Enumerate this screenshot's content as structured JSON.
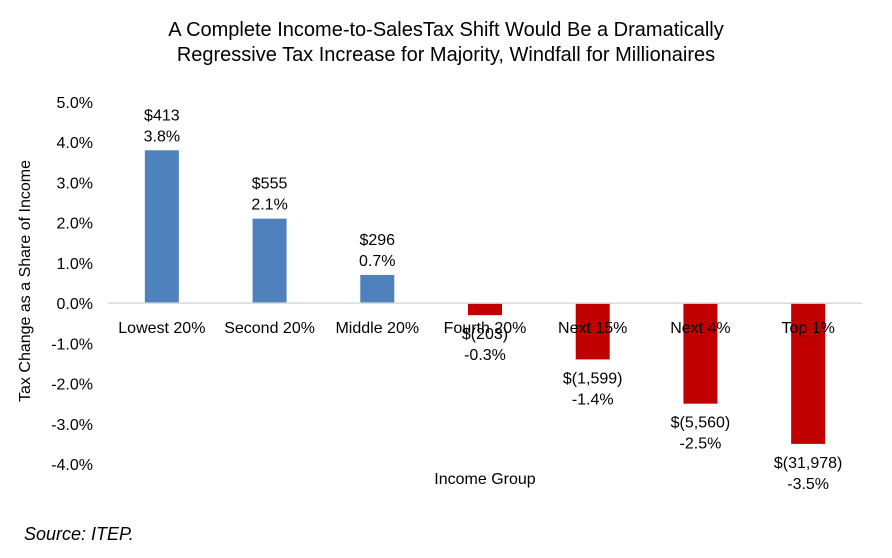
{
  "chart_data": {
    "type": "bar",
    "title_lines": [
      "A Complete Income-to-SalesTax Shift Would Be a Dramatically",
      "Regressive Tax Increase for Majority, Windfall for Millionaires"
    ],
    "xlabel": "Income Group",
    "ylabel": "Tax Change as a Share of Income",
    "ylim": [
      -4.0,
      5.0
    ],
    "yticks": [
      "5.0%",
      "4.0%",
      "3.0%",
      "2.0%",
      "1.0%",
      "0.0%",
      "-1.0%",
      "-2.0%",
      "-3.0%",
      "-4.0%"
    ],
    "categories": [
      "Lowest 20%",
      "Second 20%",
      "Middle 20%",
      "Fourth 20%",
      "Next 15%",
      "Next 4%",
      "Top 1%"
    ],
    "values": [
      3.8,
      2.1,
      0.7,
      -0.3,
      -1.4,
      -2.5,
      -3.5
    ],
    "dollar_labels": [
      "$413",
      "$555",
      "$296",
      "$(203)",
      "$(1,599)",
      "$(5,560)",
      "$(31,978)"
    ],
    "percent_labels": [
      "3.8%",
      "2.1%",
      "0.7%",
      "-0.3%",
      "-1.4%",
      "-2.5%",
      "-3.5%"
    ],
    "colors": {
      "positive": "#4f81bd",
      "negative": "#c00000"
    },
    "grid": false,
    "legend": "none"
  },
  "source": "Source: ITEP."
}
